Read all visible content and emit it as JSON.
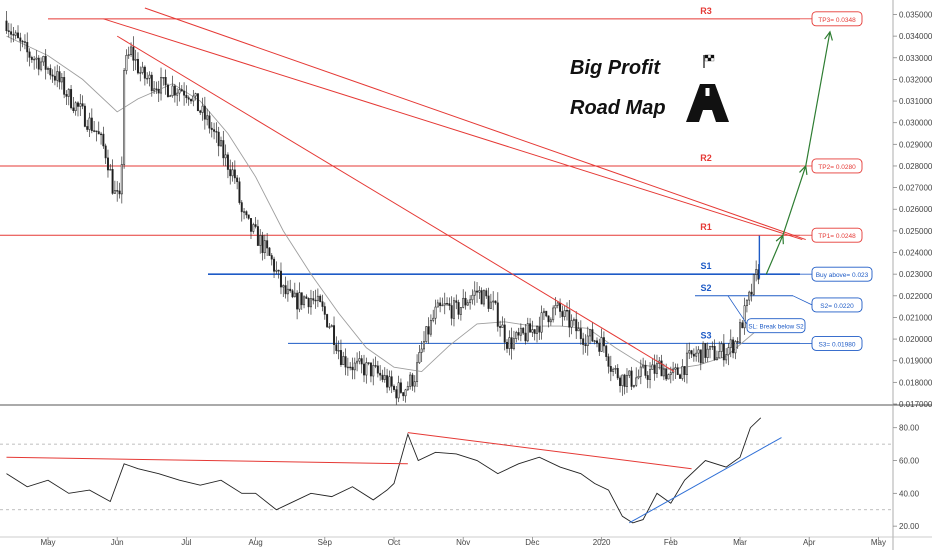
{
  "chart_data": [
    {
      "type": "candlestick",
      "panel": "price",
      "ylim": [
        0.017,
        0.0353
      ],
      "xlim_months": [
        -0.6,
        12.0
      ],
      "y_tick_labels": [
        "0.035000",
        "0.034000",
        "0.033000",
        "0.032000",
        "0.031000",
        "0.030000",
        "0.029000",
        "0.028000",
        "0.027000",
        "0.026000",
        "0.025000",
        "0.024000",
        "0.023000",
        "0.022000",
        "0.021000",
        "0.020000",
        "0.019000",
        "0.018000",
        "0.017000"
      ],
      "y_tick_values": [
        0.035,
        0.034,
        0.033,
        0.032,
        0.031,
        0.03,
        0.029,
        0.028,
        0.027,
        0.026,
        0.025,
        0.024,
        0.023,
        0.022,
        0.021,
        0.02,
        0.019,
        0.018,
        0.017
      ],
      "x_tick_labels": [
        "May",
        "Jun",
        "Jul",
        "Aug",
        "Sep",
        "Oct",
        "Nov",
        "Dec",
        "2020",
        "Feb",
        "Mar",
        "Apr",
        "May"
      ],
      "x_tick_months": [
        0,
        1,
        2,
        3,
        4,
        5,
        6,
        7,
        8,
        9,
        10,
        11,
        12
      ],
      "price_path_keypoints": [
        [
          -0.6,
          0.0347
        ],
        [
          -0.5,
          0.034
        ],
        [
          -0.3,
          0.0332
        ],
        [
          -0.1,
          0.0328
        ],
        [
          0.1,
          0.0322
        ],
        [
          0.3,
          0.0312
        ],
        [
          0.5,
          0.0304
        ],
        [
          0.7,
          0.0296
        ],
        [
          0.85,
          0.0285
        ],
        [
          0.95,
          0.0268
        ],
        [
          1.05,
          0.0262
        ],
        [
          1.1,
          0.0325
        ],
        [
          1.2,
          0.0333
        ],
        [
          1.35,
          0.0322
        ],
        [
          1.55,
          0.0318
        ],
        [
          1.75,
          0.0316
        ],
        [
          1.9,
          0.0316
        ],
        [
          2.05,
          0.0314
        ],
        [
          2.15,
          0.0308
        ],
        [
          2.35,
          0.0298
        ],
        [
          2.55,
          0.0284
        ],
        [
          2.7,
          0.0275
        ],
        [
          2.8,
          0.0258
        ],
        [
          2.9,
          0.0252
        ],
        [
          3.05,
          0.0246
        ],
        [
          3.25,
          0.0235
        ],
        [
          3.4,
          0.0222
        ],
        [
          3.55,
          0.0217
        ],
        [
          3.7,
          0.0219
        ],
        [
          3.8,
          0.0219
        ],
        [
          3.95,
          0.0214
        ],
        [
          4.1,
          0.0205
        ],
        [
          4.25,
          0.0191
        ],
        [
          4.45,
          0.0187
        ],
        [
          4.65,
          0.0186
        ],
        [
          4.85,
          0.0182
        ],
        [
          5.0,
          0.0176
        ],
        [
          5.15,
          0.0177
        ],
        [
          5.3,
          0.0183
        ],
        [
          5.45,
          0.02
        ],
        [
          5.6,
          0.0212
        ],
        [
          5.75,
          0.0215
        ],
        [
          5.9,
          0.0213
        ],
        [
          6.05,
          0.0218
        ],
        [
          6.2,
          0.0222
        ],
        [
          6.35,
          0.0218
        ],
        [
          6.45,
          0.0214
        ],
        [
          6.55,
          0.0206
        ],
        [
          6.65,
          0.0198
        ],
        [
          6.8,
          0.02
        ],
        [
          7.0,
          0.0204
        ],
        [
          7.2,
          0.0211
        ],
        [
          7.35,
          0.0214
        ],
        [
          7.5,
          0.0209
        ],
        [
          7.7,
          0.0202
        ],
        [
          7.9,
          0.02
        ],
        [
          8.05,
          0.0197
        ],
        [
          8.15,
          0.0186
        ],
        [
          8.3,
          0.0182
        ],
        [
          8.45,
          0.0181
        ],
        [
          8.6,
          0.0184
        ],
        [
          8.75,
          0.0185
        ],
        [
          8.85,
          0.0188
        ],
        [
          9.0,
          0.0182
        ],
        [
          9.15,
          0.0186
        ],
        [
          9.3,
          0.0192
        ],
        [
          9.5,
          0.0194
        ],
        [
          9.65,
          0.0193
        ],
        [
          9.8,
          0.0195
        ],
        [
          9.95,
          0.0199
        ],
        [
          10.05,
          0.021
        ],
        [
          10.15,
          0.022
        ],
        [
          10.22,
          0.0228
        ],
        [
          10.28,
          0.0232
        ]
      ],
      "last_candle_high": 0.02478,
      "series": [
        {
          "name": "",
          "style": "grey moving average",
          "values": [
            [
              -0.6,
              0.034
            ],
            [
              0,
              0.0331
            ],
            [
              0.5,
              0.032
            ],
            [
              1.0,
              0.0305
            ],
            [
              1.3,
              0.0311
            ],
            [
              1.8,
              0.0318
            ],
            [
              2.2,
              0.031
            ],
            [
              2.6,
              0.0295
            ],
            [
              3.0,
              0.0275
            ],
            [
              3.4,
              0.025
            ],
            [
              3.8,
              0.023
            ],
            [
              4.2,
              0.0212
            ],
            [
              4.6,
              0.0196
            ],
            [
              5.0,
              0.0187
            ],
            [
              5.4,
              0.0185
            ],
            [
              5.8,
              0.0197
            ],
            [
              6.2,
              0.0207
            ],
            [
              6.6,
              0.0208
            ],
            [
              7.0,
              0.0206
            ],
            [
              7.4,
              0.0206
            ],
            [
              7.8,
              0.0205
            ],
            [
              8.2,
              0.0196
            ],
            [
              8.6,
              0.0188
            ],
            [
              9.0,
              0.0186
            ],
            [
              9.4,
              0.0188
            ],
            [
              9.8,
              0.0192
            ],
            [
              10.28,
              0.0205
            ]
          ]
        }
      ],
      "horizontal_levels": [
        {
          "label": "R3",
          "value": 0.0348,
          "badge": "TP3= 0.0348",
          "color": "#e53935"
        },
        {
          "label": "R2",
          "value": 0.028,
          "badge": "TP2= 0.0280",
          "color": "#e53935"
        },
        {
          "label": "R1",
          "value": 0.0248,
          "badge": "TP1= 0.0248",
          "color": "#e53935"
        },
        {
          "label": "S1",
          "value": 0.023,
          "badge": "Buy above= 0.023",
          "color": "#1e5bc6"
        },
        {
          "label": "S2",
          "value": 0.022,
          "badge": "S2= 0.0220",
          "color": "#1e5bc6"
        },
        {
          "label": "S3",
          "value": 0.0198,
          "badge": "S3= 0.01980",
          "color": "#1e5bc6"
        }
      ],
      "annotations": [
        {
          "text": "SL: Break below S2",
          "color": "#1e5bc6"
        },
        {
          "text": "Big Profit"
        },
        {
          "text": "Road Map"
        }
      ],
      "trendlines": [
        {
          "color": "#e53935",
          "from": [
            0.8,
            0.0348
          ],
          "to": [
            10.9,
            0.0246
          ]
        },
        {
          "color": "#e53935",
          "from": [
            1.4,
            0.0353
          ],
          "to": [
            10.95,
            0.0246
          ]
        },
        {
          "color": "#e53935",
          "from": [
            1.0,
            0.034
          ],
          "to": [
            9.05,
            0.0185
          ]
        }
      ],
      "projection_arrow": {
        "color": "#2e7d32",
        "points": [
          [
            10.38,
            0.023
          ],
          [
            10.62,
            0.0248
          ],
          [
            10.95,
            0.028
          ],
          [
            11.3,
            0.0342
          ]
        ]
      }
    },
    {
      "type": "line",
      "panel": "oscillator",
      "ylim": [
        14,
        92
      ],
      "y_tick_labels": [
        "80.00",
        "60.00",
        "40.00",
        "20.00"
      ],
      "y_tick_values": [
        80,
        60,
        40,
        20
      ],
      "dashed_levels": [
        70,
        30
      ],
      "series": [
        {
          "name": "",
          "color": "#222222",
          "values": [
            [
              -0.6,
              52
            ],
            [
              -0.3,
              44
            ],
            [
              0,
              48
            ],
            [
              0.3,
              40
            ],
            [
              0.6,
              42
            ],
            [
              0.9,
              35
            ],
            [
              1.1,
              58
            ],
            [
              1.3,
              55
            ],
            [
              1.6,
              52
            ],
            [
              1.9,
              48
            ],
            [
              2.2,
              45
            ],
            [
              2.5,
              48
            ],
            [
              2.8,
              40
            ],
            [
              3.0,
              40
            ],
            [
              3.3,
              30
            ],
            [
              3.5,
              34
            ],
            [
              3.8,
              40
            ],
            [
              4.1,
              38
            ],
            [
              4.4,
              44
            ],
            [
              4.7,
              36
            ],
            [
              4.9,
              42
            ],
            [
              5.0,
              46
            ],
            [
              5.2,
              76
            ],
            [
              5.35,
              60
            ],
            [
              5.6,
              65
            ],
            [
              5.9,
              64
            ],
            [
              6.2,
              60
            ],
            [
              6.5,
              52
            ],
            [
              6.8,
              58
            ],
            [
              7.1,
              62
            ],
            [
              7.4,
              56
            ],
            [
              7.7,
              52
            ],
            [
              7.9,
              46
            ],
            [
              8.1,
              42
            ],
            [
              8.3,
              26
            ],
            [
              8.45,
              22
            ],
            [
              8.6,
              24
            ],
            [
              8.8,
              40
            ],
            [
              9.0,
              34
            ],
            [
              9.2,
              48
            ],
            [
              9.5,
              60
            ],
            [
              9.8,
              56
            ],
            [
              10.0,
              62
            ],
            [
              10.15,
              80
            ],
            [
              10.3,
              86
            ]
          ]
        }
      ],
      "trendlines": [
        {
          "color": "#e53935",
          "from": [
            -0.6,
            62
          ],
          "to": [
            5.2,
            58
          ]
        },
        {
          "color": "#e53935",
          "from": [
            5.2,
            77
          ],
          "to": [
            9.3,
            55
          ]
        },
        {
          "color": "#2f6fd6",
          "from": [
            8.4,
            22
          ],
          "to": [
            10.6,
            74
          ]
        }
      ]
    }
  ]
}
